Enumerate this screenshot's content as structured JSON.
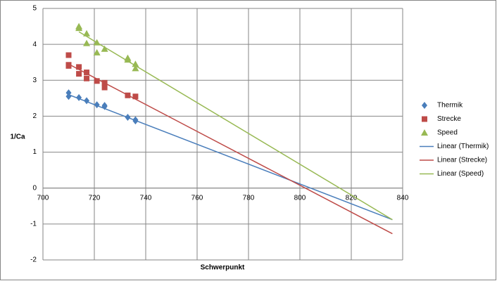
{
  "chart_data": {
    "type": "scatter",
    "xlabel": "Schwerpunkt",
    "ylabel": "1/Ca",
    "xlim": [
      700,
      840
    ],
    "ylim": [
      -2,
      5
    ],
    "xticks": [
      700,
      720,
      740,
      760,
      780,
      800,
      820,
      840
    ],
    "yticks": [
      -2,
      -1,
      0,
      1,
      2,
      3,
      4,
      5
    ],
    "grid": true,
    "legend": "right",
    "series": [
      {
        "name": "Thermik",
        "color": "#4a7ebb",
        "marker": "diamond",
        "x": [
          710,
          710,
          714,
          717,
          721,
          724,
          724,
          733,
          736,
          736
        ],
        "values": [
          2.65,
          2.55,
          2.52,
          2.43,
          2.32,
          2.3,
          2.27,
          1.97,
          1.9,
          1.87
        ]
      },
      {
        "name": "Strecke",
        "color": "#be4b48",
        "marker": "square",
        "x": [
          710,
          710,
          710,
          714,
          714,
          717,
          717,
          721,
          724,
          724,
          733,
          736
        ],
        "values": [
          3.7,
          3.43,
          3.4,
          3.37,
          3.18,
          3.22,
          3.05,
          2.98,
          2.93,
          2.8,
          2.58,
          2.55
        ]
      },
      {
        "name": "Speed",
        "color": "#98b954",
        "marker": "triangle",
        "x": [
          714,
          714,
          717,
          717,
          721,
          721,
          724,
          733,
          733,
          736,
          736
        ],
        "values": [
          4.5,
          4.45,
          4.3,
          4.03,
          4.05,
          3.77,
          3.87,
          3.62,
          3.57,
          3.45,
          3.33
        ]
      }
    ],
    "trendlines": [
      {
        "name": "Linear (Thermik)",
        "color": "#4a7ebb",
        "x": [
          710,
          836
        ],
        "values": [
          2.6,
          -0.88
        ]
      },
      {
        "name": "Linear (Strecke)",
        "color": "#be4b48",
        "x": [
          710,
          836
        ],
        "values": [
          3.45,
          -1.27
        ]
      },
      {
        "name": "Linear (Speed)",
        "color": "#98b954",
        "x": [
          714,
          836
        ],
        "values": [
          4.35,
          -0.88
        ]
      }
    ]
  }
}
